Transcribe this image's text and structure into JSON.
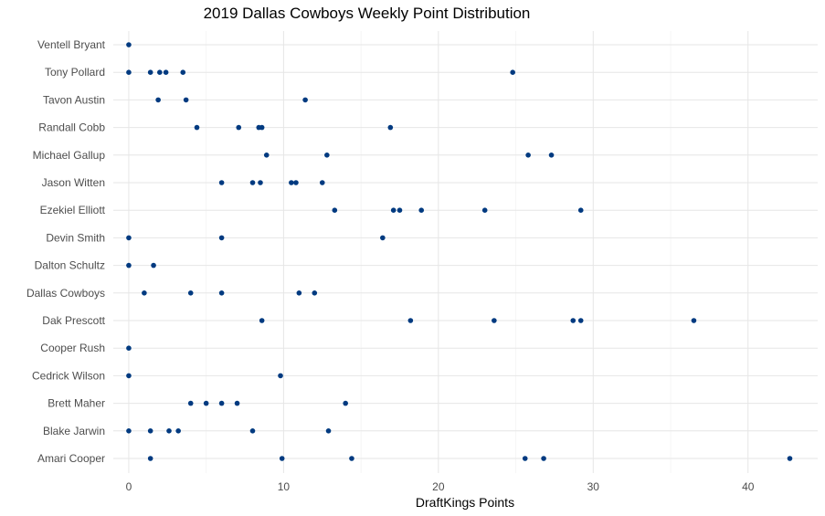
{
  "chart_data": {
    "type": "scatter",
    "title": "2019 Dallas Cowboys Weekly Point Distribution",
    "xlabel": "DraftKings Points",
    "ylabel": "",
    "xlim": [
      -1,
      44.5
    ],
    "xticks": [
      0,
      10,
      20,
      30,
      40
    ],
    "grid": true,
    "legend": "none",
    "point_color": "#003a80",
    "categories": [
      "Ventell Bryant",
      "Tony Pollard",
      "Tavon Austin",
      "Randall Cobb",
      "Michael Gallup",
      "Jason Witten",
      "Ezekiel Elliott",
      "Devin Smith",
      "Dalton Schultz",
      "Dallas Cowboys",
      "Dak Prescott",
      "Cooper Rush",
      "Cedrick Wilson",
      "Brett Maher",
      "Blake Jarwin",
      "Amari Cooper"
    ],
    "points": [
      {
        "category": "Ventell Bryant",
        "values": [
          0
        ]
      },
      {
        "category": "Tony Pollard",
        "values": [
          0,
          1.4,
          2.0,
          2.4,
          3.5,
          24.8
        ]
      },
      {
        "category": "Tavon Austin",
        "values": [
          1.9,
          3.7,
          11.4
        ]
      },
      {
        "category": "Randall Cobb",
        "values": [
          4.4,
          7.1,
          8.4,
          8.6,
          16.9
        ]
      },
      {
        "category": "Michael Gallup",
        "values": [
          8.9,
          12.8,
          25.8,
          27.3
        ]
      },
      {
        "category": "Jason Witten",
        "values": [
          6.0,
          8.0,
          8.5,
          10.5,
          10.8,
          12.5
        ]
      },
      {
        "category": "Ezekiel Elliott",
        "values": [
          13.3,
          17.1,
          17.5,
          18.9,
          23.0,
          29.2
        ]
      },
      {
        "category": "Devin Smith",
        "values": [
          0,
          6.0,
          16.4
        ]
      },
      {
        "category": "Dalton Schultz",
        "values": [
          0,
          1.6
        ]
      },
      {
        "category": "Dallas Cowboys",
        "values": [
          1.0,
          4.0,
          6.0,
          11.0,
          12.0
        ]
      },
      {
        "category": "Dak Prescott",
        "values": [
          8.6,
          18.2,
          23.6,
          28.7,
          29.2,
          36.5
        ]
      },
      {
        "category": "Cooper Rush",
        "values": [
          0
        ]
      },
      {
        "category": "Cedrick Wilson",
        "values": [
          0,
          9.8
        ]
      },
      {
        "category": "Brett Maher",
        "values": [
          4.0,
          5.0,
          6.0,
          7.0,
          14.0
        ]
      },
      {
        "category": "Blake Jarwin",
        "values": [
          0,
          1.4,
          2.6,
          3.2,
          8.0,
          12.9
        ]
      },
      {
        "category": "Amari Cooper",
        "values": [
          1.4,
          9.9,
          14.4,
          25.6,
          26.8,
          42.7
        ]
      }
    ]
  }
}
